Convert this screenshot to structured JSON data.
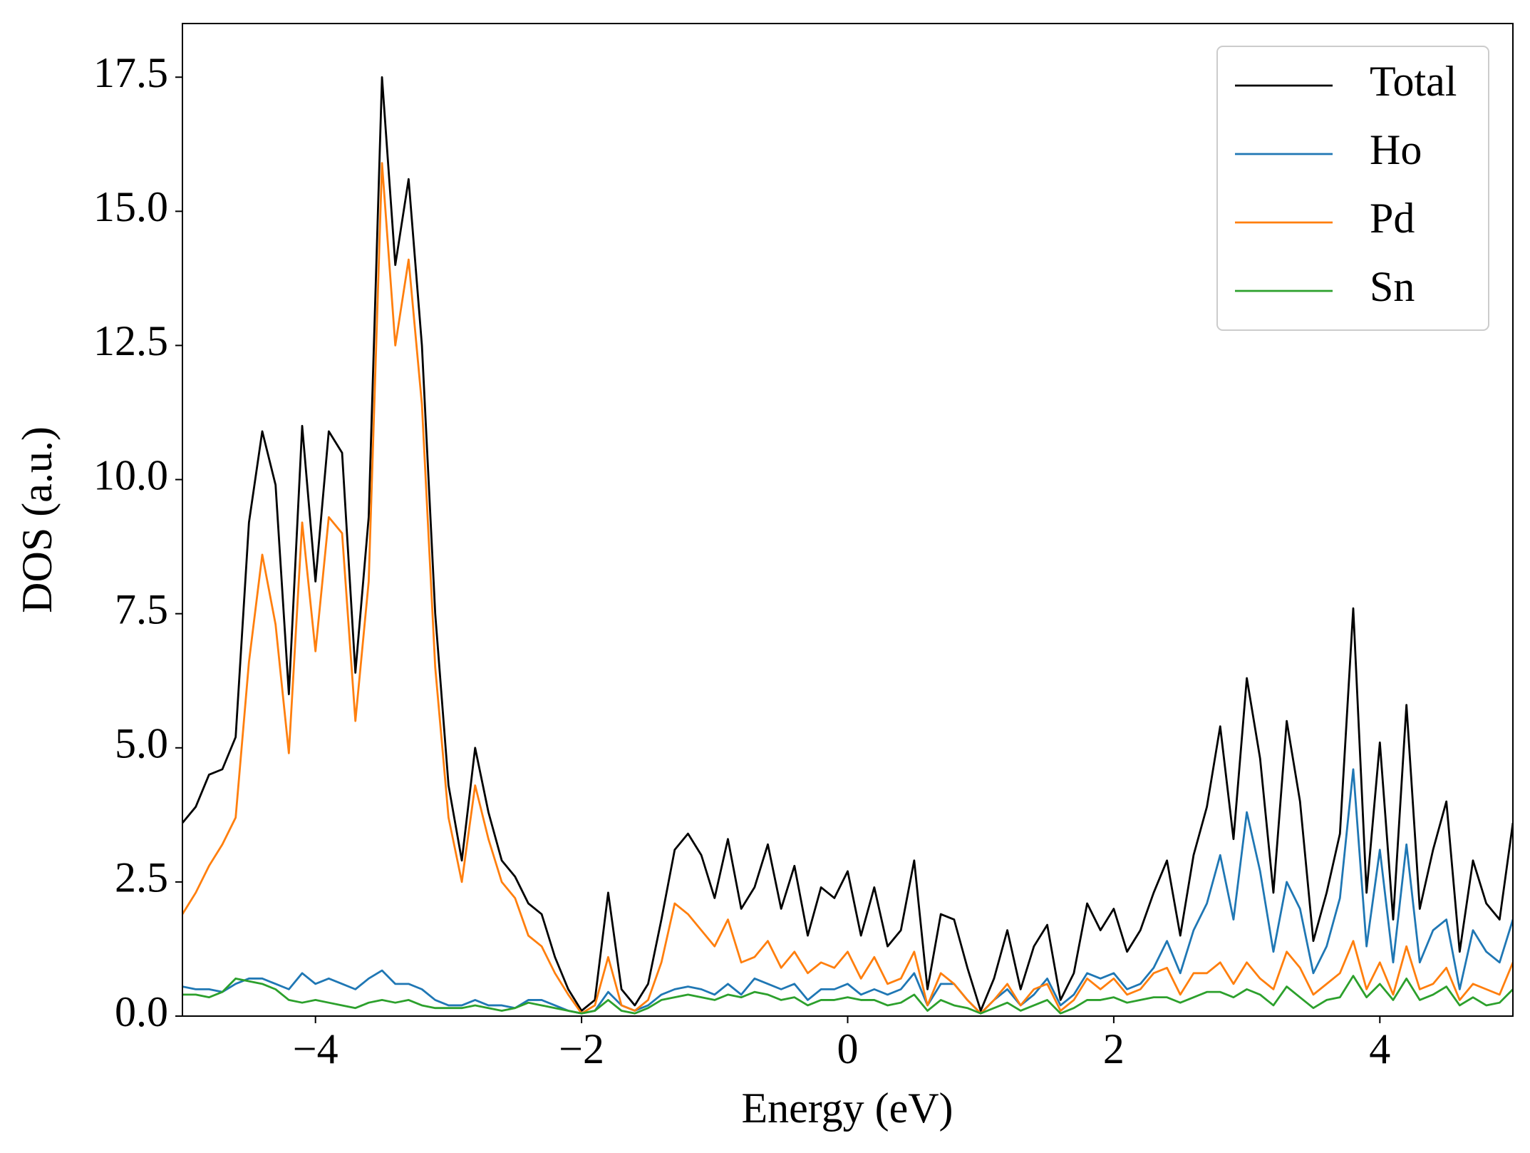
{
  "chart_data": {
    "type": "line",
    "x_label": "Energy (eV)",
    "y_label": "DOS (a.u.)",
    "x": [
      -5.0,
      -4.9,
      -4.8,
      -4.7,
      -4.6,
      -4.5,
      -4.4,
      -4.3,
      -4.2,
      -4.1,
      -4.0,
      -3.9,
      -3.8,
      -3.7,
      -3.6,
      -3.5,
      -3.4,
      -3.3,
      -3.2,
      -3.1,
      -3.0,
      -2.9,
      -2.8,
      -2.7,
      -2.6,
      -2.5,
      -2.4,
      -2.3,
      -2.2,
      -2.1,
      -2.0,
      -1.9,
      -1.8,
      -1.7,
      -1.6,
      -1.5,
      -1.4,
      -1.3,
      -1.2,
      -1.1,
      -1.0,
      -0.9,
      -0.8,
      -0.7,
      -0.6,
      -0.5,
      -0.4,
      -0.3,
      -0.2,
      -0.1,
      0.0,
      0.1,
      0.2,
      0.3,
      0.4,
      0.5,
      0.6,
      0.7,
      0.8,
      0.9,
      1.0,
      1.1,
      1.2,
      1.3,
      1.4,
      1.5,
      1.6,
      1.7,
      1.8,
      1.9,
      2.0,
      2.1,
      2.2,
      2.3,
      2.4,
      2.5,
      2.6,
      2.7,
      2.8,
      2.9,
      3.0,
      3.1,
      3.2,
      3.3,
      3.4,
      3.5,
      3.6,
      3.7,
      3.8,
      3.9,
      4.0,
      4.1,
      4.2,
      4.3,
      4.4,
      4.5,
      4.6,
      4.7,
      4.8,
      4.9,
      5.0
    ],
    "series": [
      {
        "name": "Total",
        "color": "#000000",
        "values": [
          3.6,
          3.9,
          4.5,
          4.6,
          5.2,
          9.2,
          10.9,
          9.9,
          6.0,
          11.0,
          8.1,
          10.9,
          10.5,
          6.4,
          9.3,
          17.5,
          14.0,
          15.6,
          12.5,
          7.5,
          4.3,
          2.9,
          5.0,
          3.8,
          2.9,
          2.6,
          2.1,
          1.9,
          1.1,
          0.5,
          0.1,
          0.3,
          2.3,
          0.5,
          0.2,
          0.6,
          1.8,
          3.1,
          3.4,
          3.0,
          2.2,
          3.3,
          2.0,
          2.4,
          3.2,
          2.0,
          2.8,
          1.5,
          2.4,
          2.2,
          2.7,
          1.5,
          2.4,
          1.3,
          1.6,
          2.9,
          0.5,
          1.9,
          1.8,
          0.9,
          0.1,
          0.7,
          1.6,
          0.5,
          1.3,
          1.7,
          0.3,
          0.8,
          2.1,
          1.6,
          2.0,
          1.2,
          1.6,
          2.3,
          2.9,
          1.5,
          3.0,
          3.9,
          5.4,
          3.3,
          6.3,
          4.8,
          2.3,
          5.5,
          4.0,
          1.4,
          2.3,
          3.4,
          7.6,
          2.3,
          5.1,
          1.8,
          5.8,
          2.0,
          3.1,
          4.0,
          1.2,
          2.9,
          2.1,
          1.8,
          3.6
        ]
      },
      {
        "name": "Ho",
        "color": "#1f77b4",
        "values": [
          0.55,
          0.5,
          0.5,
          0.45,
          0.6,
          0.7,
          0.7,
          0.6,
          0.5,
          0.8,
          0.6,
          0.7,
          0.6,
          0.5,
          0.7,
          0.85,
          0.6,
          0.6,
          0.5,
          0.3,
          0.2,
          0.2,
          0.3,
          0.2,
          0.2,
          0.15,
          0.3,
          0.3,
          0.2,
          0.1,
          0.05,
          0.1,
          0.45,
          0.2,
          0.1,
          0.2,
          0.4,
          0.5,
          0.55,
          0.5,
          0.4,
          0.6,
          0.4,
          0.7,
          0.6,
          0.5,
          0.6,
          0.3,
          0.5,
          0.5,
          0.6,
          0.4,
          0.5,
          0.4,
          0.5,
          0.8,
          0.2,
          0.6,
          0.6,
          0.3,
          0.05,
          0.3,
          0.5,
          0.2,
          0.4,
          0.7,
          0.2,
          0.4,
          0.8,
          0.7,
          0.8,
          0.5,
          0.6,
          0.9,
          1.4,
          0.8,
          1.6,
          2.1,
          3.0,
          1.8,
          3.8,
          2.7,
          1.2,
          2.5,
          2.0,
          0.8,
          1.3,
          2.2,
          4.6,
          1.3,
          3.1,
          1.0,
          3.2,
          1.0,
          1.6,
          1.8,
          0.5,
          1.6,
          1.2,
          1.0,
          1.8
        ]
      },
      {
        "name": "Pd",
        "color": "#ff7f0e",
        "values": [
          1.9,
          2.3,
          2.8,
          3.2,
          3.7,
          6.6,
          8.6,
          7.3,
          4.9,
          9.2,
          6.8,
          9.3,
          9.0,
          5.5,
          8.1,
          15.9,
          12.5,
          14.1,
          11.4,
          6.5,
          3.7,
          2.5,
          4.3,
          3.3,
          2.5,
          2.2,
          1.5,
          1.3,
          0.8,
          0.4,
          0.05,
          0.2,
          1.1,
          0.2,
          0.1,
          0.3,
          1.0,
          2.1,
          1.9,
          1.6,
          1.3,
          1.8,
          1.0,
          1.1,
          1.4,
          0.9,
          1.2,
          0.8,
          1.0,
          0.9,
          1.2,
          0.7,
          1.1,
          0.6,
          0.7,
          1.2,
          0.2,
          0.8,
          0.6,
          0.3,
          0.05,
          0.3,
          0.6,
          0.2,
          0.5,
          0.6,
          0.1,
          0.3,
          0.7,
          0.5,
          0.7,
          0.4,
          0.5,
          0.8,
          0.9,
          0.4,
          0.8,
          0.8,
          1.0,
          0.6,
          1.0,
          0.7,
          0.5,
          1.2,
          0.9,
          0.4,
          0.6,
          0.8,
          1.4,
          0.5,
          1.0,
          0.4,
          1.3,
          0.5,
          0.6,
          0.9,
          0.3,
          0.6,
          0.5,
          0.4,
          1.0
        ]
      },
      {
        "name": "Sn",
        "color": "#2ca02c",
        "values": [
          0.4,
          0.4,
          0.35,
          0.45,
          0.7,
          0.65,
          0.6,
          0.5,
          0.3,
          0.25,
          0.3,
          0.25,
          0.2,
          0.15,
          0.25,
          0.3,
          0.25,
          0.3,
          0.2,
          0.15,
          0.15,
          0.15,
          0.2,
          0.15,
          0.1,
          0.15,
          0.25,
          0.2,
          0.15,
          0.1,
          0.05,
          0.1,
          0.3,
          0.1,
          0.05,
          0.15,
          0.3,
          0.35,
          0.4,
          0.35,
          0.3,
          0.4,
          0.35,
          0.45,
          0.4,
          0.3,
          0.35,
          0.2,
          0.3,
          0.3,
          0.35,
          0.3,
          0.3,
          0.2,
          0.25,
          0.4,
          0.1,
          0.3,
          0.2,
          0.15,
          0.05,
          0.15,
          0.25,
          0.1,
          0.2,
          0.3,
          0.05,
          0.15,
          0.3,
          0.3,
          0.35,
          0.25,
          0.3,
          0.35,
          0.35,
          0.25,
          0.35,
          0.45,
          0.45,
          0.35,
          0.5,
          0.4,
          0.2,
          0.55,
          0.35,
          0.15,
          0.3,
          0.35,
          0.75,
          0.35,
          0.6,
          0.3,
          0.7,
          0.3,
          0.4,
          0.55,
          0.2,
          0.35,
          0.2,
          0.25,
          0.5
        ]
      }
    ],
    "xlim": [
      -5,
      5
    ],
    "xticks": [
      {
        "value": -4,
        "label": "−4"
      },
      {
        "value": -2,
        "label": "−2"
      },
      0,
      2,
      4
    ],
    "ylim": [
      0,
      18.5
    ],
    "yticks": [
      {
        "value": 0,
        "label": "0.0"
      },
      2.5,
      {
        "value": 5,
        "label": "5.0"
      },
      7.5,
      {
        "value": 10,
        "label": "10.0"
      },
      12.5,
      {
        "value": 15,
        "label": "15.0"
      },
      17.5
    ],
    "legend": "upper right"
  }
}
